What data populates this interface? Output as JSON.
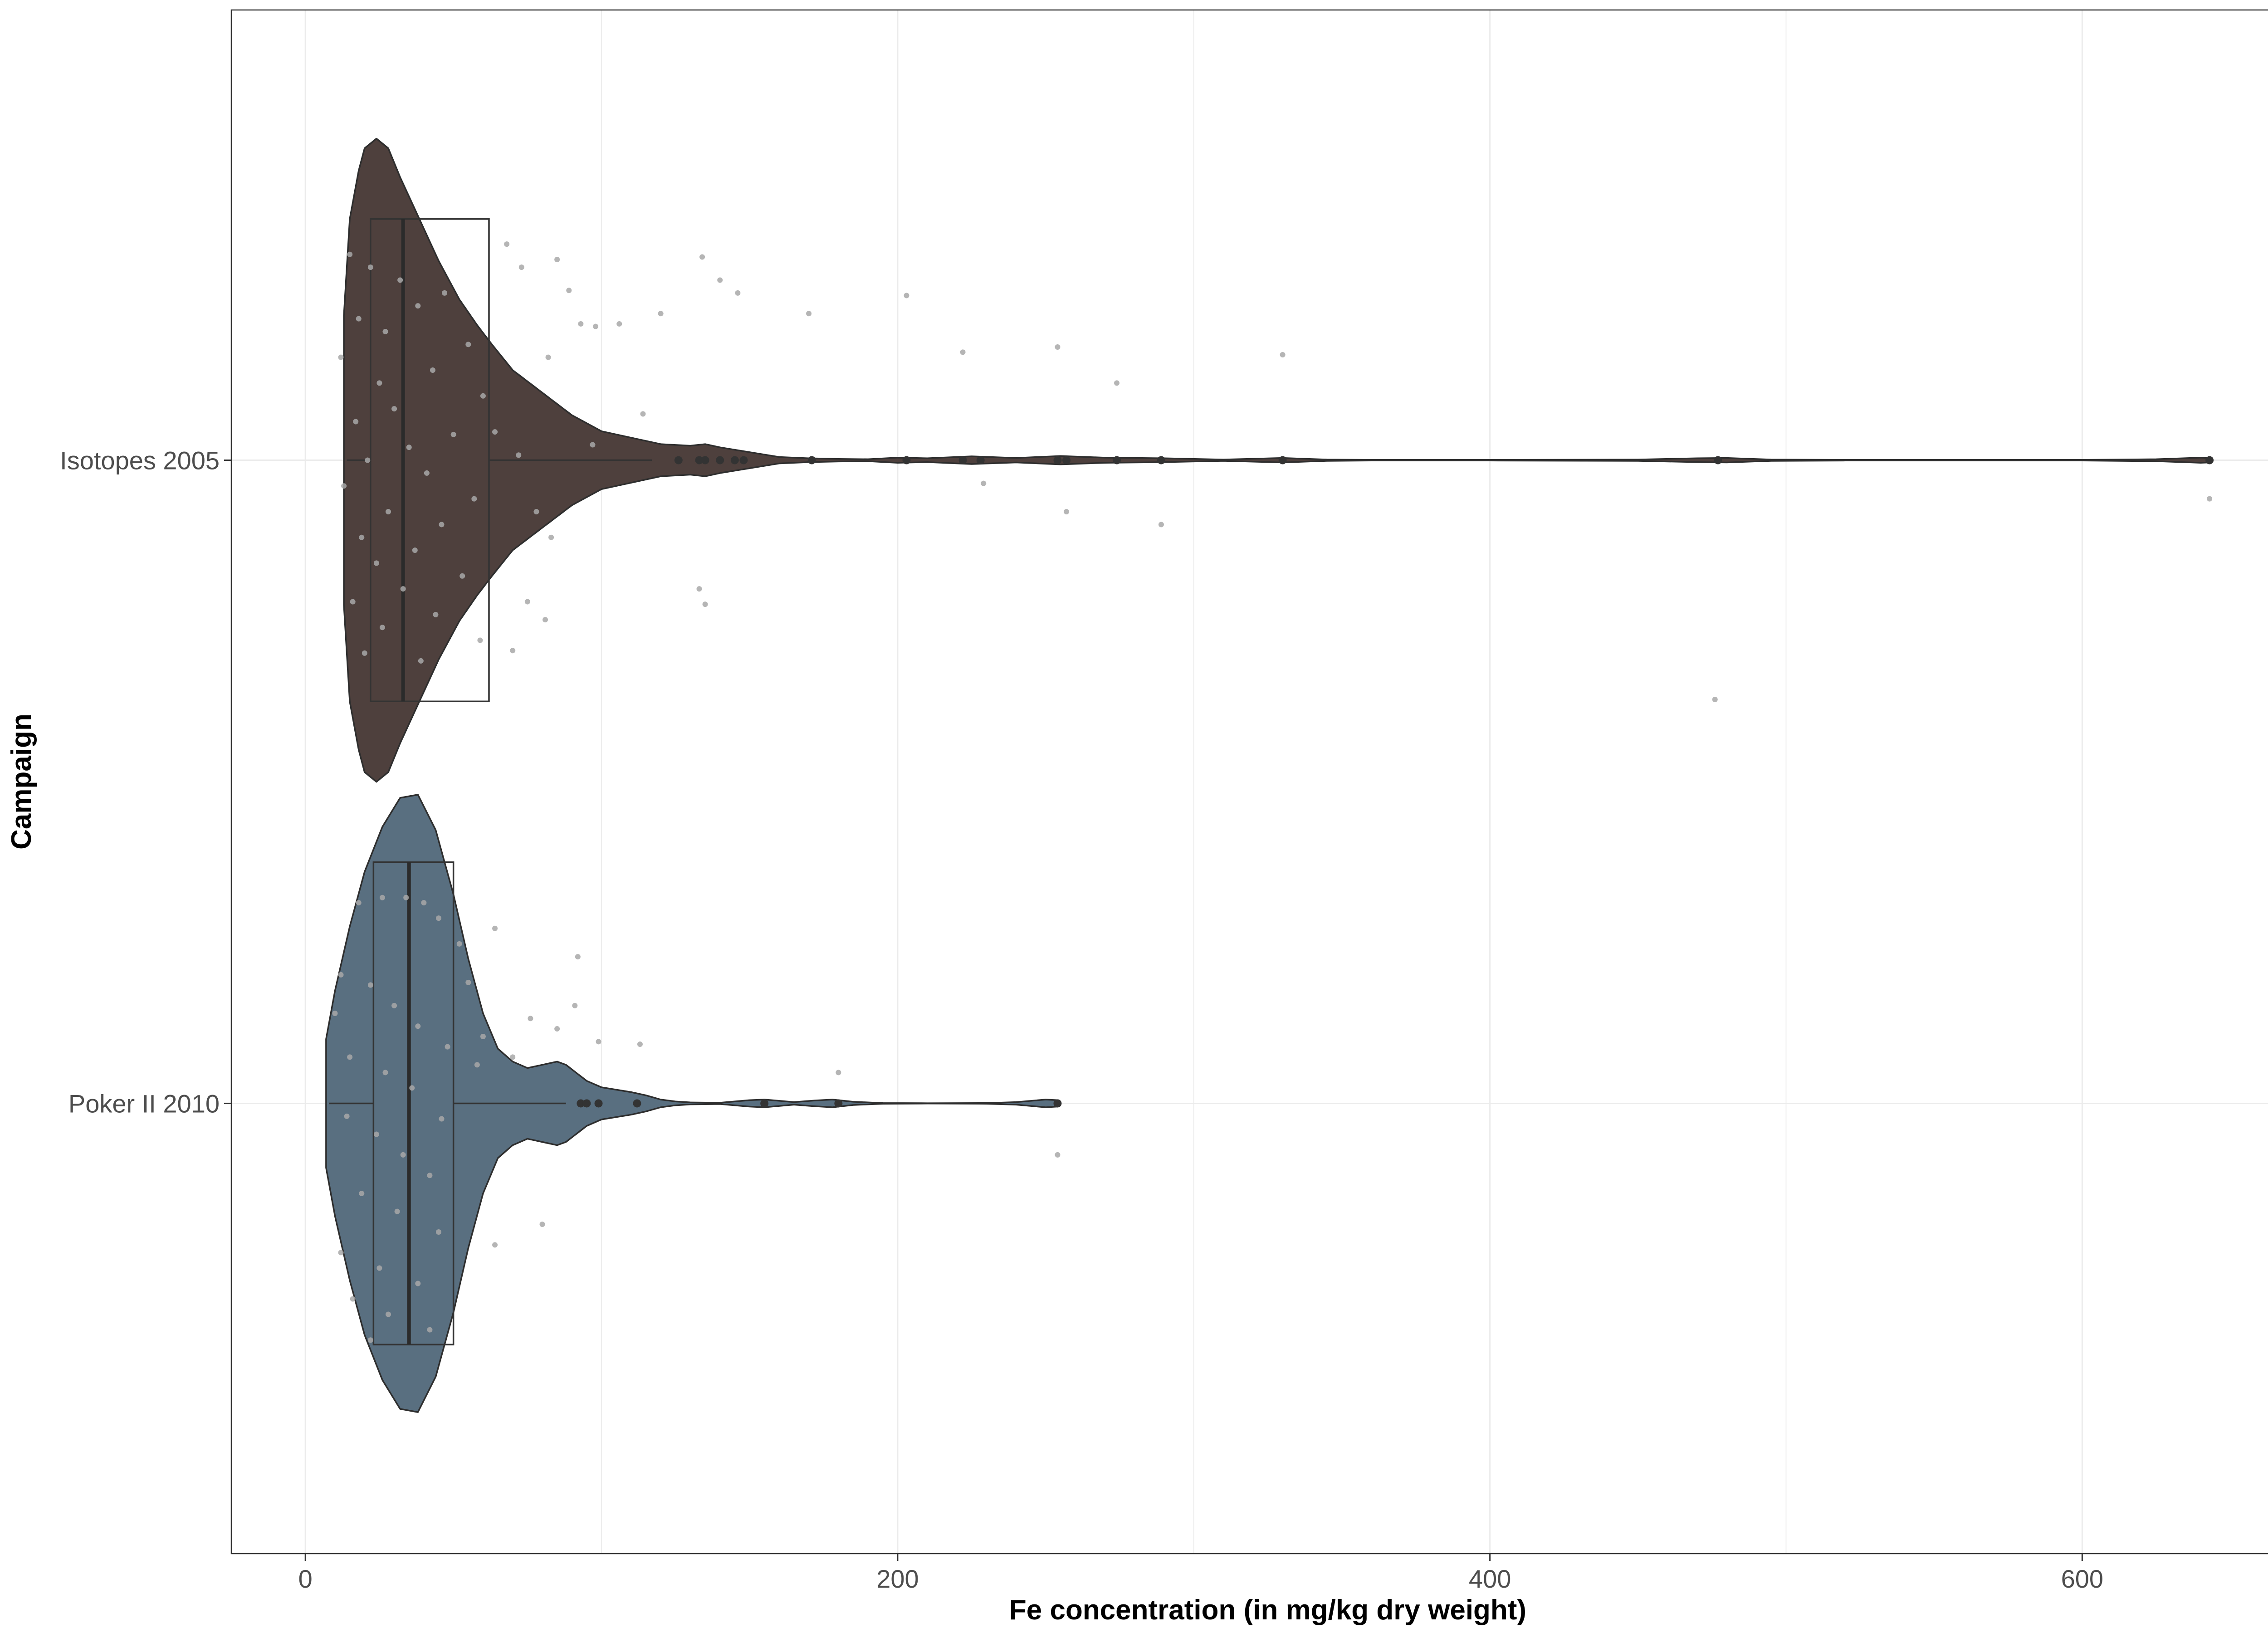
{
  "chart_data": {
    "type": "violin",
    "orientation": "horizontal",
    "xlabel": "Fe concentration (in mg/kg dry weight)",
    "ylabel": "Campaign",
    "xlim": [
      -25,
      675
    ],
    "x_ticks": [
      0,
      200,
      400,
      600
    ],
    "grid": true,
    "legend": "none",
    "categories": [
      "Isotopes 2005",
      "Poker II 2010"
    ],
    "series": [
      {
        "name": "Isotopes 2005",
        "color": "#4e403d",
        "box": {
          "q1": 22,
          "median": 33,
          "q3": 62,
          "whisker_low": 14,
          "whisker_high": 117
        },
        "violin_min": 13,
        "violin_max": 643,
        "density": [
          [
            13,
            0.45
          ],
          [
            15,
            0.75
          ],
          [
            18,
            0.9
          ],
          [
            20,
            0.97
          ],
          [
            24,
            1.0
          ],
          [
            28,
            0.97
          ],
          [
            32,
            0.88
          ],
          [
            38,
            0.76
          ],
          [
            45,
            0.62
          ],
          [
            52,
            0.5
          ],
          [
            58,
            0.42
          ],
          [
            63,
            0.36
          ],
          [
            70,
            0.28
          ],
          [
            80,
            0.21
          ],
          [
            90,
            0.14
          ],
          [
            100,
            0.09
          ],
          [
            110,
            0.07
          ],
          [
            120,
            0.05
          ],
          [
            130,
            0.045
          ],
          [
            135,
            0.05
          ],
          [
            140,
            0.04
          ],
          [
            150,
            0.025
          ],
          [
            160,
            0.01
          ],
          [
            170,
            0.006
          ],
          [
            180,
            0.004
          ],
          [
            190,
            0.003
          ],
          [
            200,
            0.008
          ],
          [
            210,
            0.006
          ],
          [
            225,
            0.012
          ],
          [
            240,
            0.007
          ],
          [
            255,
            0.013
          ],
          [
            270,
            0.008
          ],
          [
            290,
            0.006
          ],
          [
            310,
            0.002
          ],
          [
            330,
            0.007
          ],
          [
            345,
            0.002
          ],
          [
            360,
            0.001
          ],
          [
            400,
            0.001
          ],
          [
            450,
            0.002
          ],
          [
            470,
            0.006
          ],
          [
            480,
            0.007
          ],
          [
            495,
            0.002
          ],
          [
            520,
            0.001
          ],
          [
            600,
            0.001
          ],
          [
            625,
            0.003
          ],
          [
            640,
            0.008
          ],
          [
            643,
            0.007
          ]
        ],
        "outliers": [
          126,
          133,
          135,
          140,
          145,
          148,
          171,
          203,
          222,
          228,
          254,
          257,
          274,
          289,
          330,
          477,
          643
        ],
        "jitter": [
          [
            15,
            0.8
          ],
          [
            22,
            0.75
          ],
          [
            32,
            0.7
          ],
          [
            47,
            0.65
          ],
          [
            38,
            0.6
          ],
          [
            18,
            0.55
          ],
          [
            27,
            0.5
          ],
          [
            55,
            0.45
          ],
          [
            12,
            0.4
          ],
          [
            43,
            0.35
          ],
          [
            25,
            0.3
          ],
          [
            60,
            0.25
          ],
          [
            30,
            0.2
          ],
          [
            17,
            0.15
          ],
          [
            50,
            0.1
          ],
          [
            35,
            0.05
          ],
          [
            21,
            0.0
          ],
          [
            41,
            -0.05
          ],
          [
            13,
            -0.1
          ],
          [
            57,
            -0.15
          ],
          [
            28,
            -0.2
          ],
          [
            46,
            -0.25
          ],
          [
            19,
            -0.3
          ],
          [
            37,
            -0.35
          ],
          [
            24,
            -0.4
          ],
          [
            53,
            -0.45
          ],
          [
            33,
            -0.5
          ],
          [
            16,
            -0.55
          ],
          [
            44,
            -0.6
          ],
          [
            26,
            -0.65
          ],
          [
            59,
            -0.7
          ],
          [
            20,
            -0.75
          ],
          [
            39,
            -0.78
          ],
          [
            68,
            0.84
          ],
          [
            73,
            0.75
          ],
          [
            85,
            0.78
          ],
          [
            82,
            0.4
          ],
          [
            72,
            0.02
          ],
          [
            89,
            0.66
          ],
          [
            93,
            0.53
          ],
          [
            98,
            0.52
          ],
          [
            106,
            0.53
          ],
          [
            120,
            0.57
          ],
          [
            134,
            0.79
          ],
          [
            140,
            0.7
          ],
          [
            146,
            0.65
          ],
          [
            170,
            0.57
          ],
          [
            203,
            0.64
          ],
          [
            222,
            0.42
          ],
          [
            254,
            0.44
          ],
          [
            274,
            0.3
          ],
          [
            330,
            0.41
          ],
          [
            114,
            0.18
          ],
          [
            97,
            0.06
          ],
          [
            83,
            -0.3
          ],
          [
            75,
            -0.55
          ],
          [
            81,
            -0.62
          ],
          [
            133,
            -0.5
          ],
          [
            135,
            -0.56
          ],
          [
            70,
            -0.74
          ],
          [
            229,
            -0.09
          ],
          [
            257,
            -0.2
          ],
          [
            289,
            -0.25
          ],
          [
            476,
            -0.93
          ],
          [
            643,
            -0.15
          ],
          [
            64,
            0.11
          ],
          [
            78,
            -0.2
          ]
        ]
      },
      {
        "name": "Poker II 2010",
        "color": "#596f80",
        "box": {
          "q1": 23,
          "median": 35,
          "q3": 50,
          "whisker_low": 8,
          "whisker_high": 88
        },
        "violin_min": 7,
        "violin_max": 254,
        "density": [
          [
            7,
            0.2
          ],
          [
            10,
            0.35
          ],
          [
            15,
            0.55
          ],
          [
            20,
            0.72
          ],
          [
            26,
            0.86
          ],
          [
            32,
            0.95
          ],
          [
            38,
            0.96
          ],
          [
            44,
            0.85
          ],
          [
            50,
            0.65
          ],
          [
            55,
            0.45
          ],
          [
            60,
            0.28
          ],
          [
            65,
            0.17
          ],
          [
            70,
            0.13
          ],
          [
            75,
            0.11
          ],
          [
            80,
            0.12
          ],
          [
            85,
            0.13
          ],
          [
            88,
            0.12
          ],
          [
            95,
            0.07
          ],
          [
            100,
            0.05
          ],
          [
            110,
            0.035
          ],
          [
            115,
            0.025
          ],
          [
            120,
            0.012
          ],
          [
            125,
            0.006
          ],
          [
            130,
            0.003
          ],
          [
            140,
            0.002
          ],
          [
            150,
            0.01
          ],
          [
            155,
            0.012
          ],
          [
            160,
            0.008
          ],
          [
            165,
            0.004
          ],
          [
            172,
            0.009
          ],
          [
            178,
            0.012
          ],
          [
            185,
            0.005
          ],
          [
            195,
            0.001
          ],
          [
            210,
            0.0005
          ],
          [
            230,
            0.001
          ],
          [
            240,
            0.004
          ],
          [
            250,
            0.012
          ],
          [
            254,
            0.01
          ]
        ],
        "outliers": [
          93,
          95,
          99,
          112,
          155,
          180,
          254
        ],
        "jitter": [
          [
            12,
            0.5
          ],
          [
            18,
            0.78
          ],
          [
            26,
            0.8
          ],
          [
            34,
            0.8
          ],
          [
            40,
            0.78
          ],
          [
            45,
            0.72
          ],
          [
            52,
            0.62
          ],
          [
            22,
            0.46
          ],
          [
            30,
            0.38
          ],
          [
            38,
            0.3
          ],
          [
            48,
            0.22
          ],
          [
            15,
            0.18
          ],
          [
            27,
            0.12
          ],
          [
            36,
            0.06
          ],
          [
            60,
            0.26
          ],
          [
            70,
            0.18
          ],
          [
            85,
            0.29
          ],
          [
            91,
            0.38
          ],
          [
            92,
            0.57
          ],
          [
            99,
            0.24
          ],
          [
            113,
            0.23
          ],
          [
            64,
            0.68
          ],
          [
            76,
            0.33
          ],
          [
            14,
            -0.05
          ],
          [
            24,
            -0.12
          ],
          [
            33,
            -0.2
          ],
          [
            42,
            -0.28
          ],
          [
            19,
            -0.35
          ],
          [
            31,
            -0.42
          ],
          [
            45,
            -0.5
          ],
          [
            12,
            -0.58
          ],
          [
            25,
            -0.64
          ],
          [
            38,
            -0.7
          ],
          [
            16,
            -0.76
          ],
          [
            28,
            -0.82
          ],
          [
            42,
            -0.88
          ],
          [
            22,
            -0.92
          ],
          [
            80,
            -0.47
          ],
          [
            180,
            0.12
          ],
          [
            254,
            -0.2
          ],
          [
            55,
            0.47
          ],
          [
            64,
            -0.55
          ],
          [
            10,
            0.35
          ],
          [
            46,
            -0.06
          ],
          [
            58,
            0.15
          ]
        ]
      }
    ]
  }
}
